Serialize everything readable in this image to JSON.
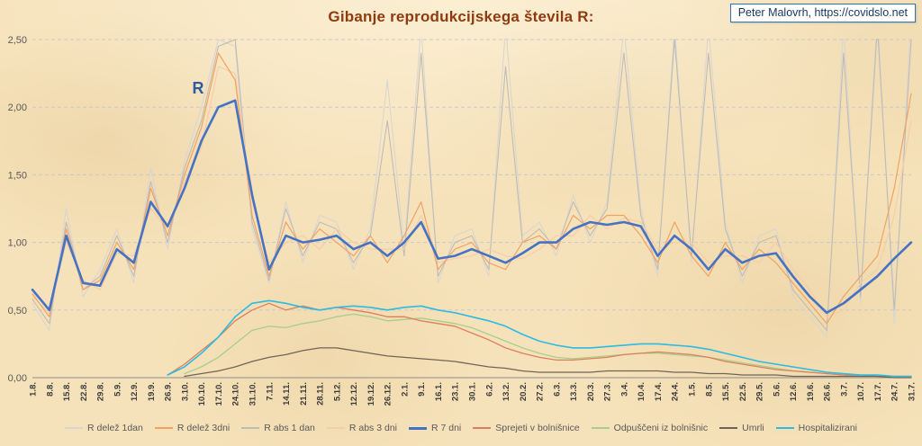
{
  "credit": {
    "text": "Peter Malovrh, https://covidslo.net"
  },
  "colors": {
    "background": "#f6e2ba",
    "title": "#8e3b10",
    "credit_border": "#2e75b6",
    "credit_text": "#17375e",
    "grid": "#c9c9c9",
    "axis_line": "#8c8c8c",
    "axis_text": "#595959",
    "tick_text": "#3a3a3a",
    "legend_text": "#595959",
    "accent_blue": "#4472c4"
  },
  "chart_data": {
    "type": "line",
    "title": "Gibanje reprodukcijskega števila R:",
    "xlabel": "",
    "ylabel": "",
    "ylim": [
      0,
      2.5
    ],
    "grid": "horizontal-dashed",
    "legend_position": "bottom",
    "y_ticks": [
      {
        "value": 0,
        "label": "0,00"
      },
      {
        "value": 0.5,
        "label": "0,50"
      },
      {
        "value": 1,
        "label": "1,00"
      },
      {
        "value": 1.5,
        "label": "1,50"
      },
      {
        "value": 2,
        "label": "2,00"
      },
      {
        "value": 2.5,
        "label": "2,50"
      }
    ],
    "x_tick_labels": [
      "1.8.",
      "8.8.",
      "15.8.",
      "22.8.",
      "29.8.",
      "5.9.",
      "12.9.",
      "19.9.",
      "26.9.",
      "3.10.",
      "10.10.",
      "17.10.",
      "24.10.",
      "31.10.",
      "7.11.",
      "14.11.",
      "21.11.",
      "28.11.",
      "5.12.",
      "12.12.",
      "19.12.",
      "26.12.",
      "2.1.",
      "9.1.",
      "16.1.",
      "23.1.",
      "30.1.",
      "6.2.",
      "13.2.",
      "20.2.",
      "27.2.",
      "6.3.",
      "13.3.",
      "20.3.",
      "27.3.",
      "3.4.",
      "10.4.",
      "17.4.",
      "24.4.",
      "1.5.",
      "8.5.",
      "15.5.",
      "22.5.",
      "29.5.",
      "5.6.",
      "12.6.",
      "19.6.",
      "26.6.",
      "3.7.",
      "10.7.",
      "17.7.",
      "24.7.",
      "31.7."
    ],
    "annotation": {
      "text": "R",
      "x_index": 9.8,
      "y_value": 2.1,
      "color": "#2e5b9f"
    },
    "draw_order": [
      0,
      2,
      3,
      1,
      6,
      5,
      7,
      8,
      4
    ],
    "series": [
      {
        "name": "R delež 1dan",
        "color": "#d9d6d0",
        "width": 1.1,
        "values": [
          0.55,
          0.35,
          1.25,
          0.6,
          0.8,
          1.1,
          0.7,
          1.55,
          0.95,
          1.6,
          2.0,
          2.5,
          2.45,
          1.1,
          0.7,
          1.3,
          0.85,
          1.2,
          1.15,
          0.8,
          1.1,
          2.2,
          0.95,
          2.6,
          0.7,
          1.05,
          1.1,
          0.75,
          2.6,
          1.05,
          1.15,
          0.9,
          1.35,
          1.0,
          1.3,
          2.6,
          1.25,
          0.75,
          2.6,
          0.85,
          2.6,
          1.15,
          0.7,
          1.05,
          1.1,
          0.6,
          0.45,
          0.3,
          2.6,
          0.55,
          2.7,
          0.4,
          2.7
        ]
      },
      {
        "name": "R delež 3dni",
        "color": "#f1a263",
        "width": 1.2,
        "values": [
          0.62,
          0.45,
          1.1,
          0.65,
          0.72,
          1.0,
          0.8,
          1.4,
          1.05,
          1.5,
          1.85,
          2.4,
          2.2,
          1.2,
          0.75,
          1.15,
          0.95,
          1.1,
          1.0,
          0.9,
          1.05,
          0.85,
          1.05,
          1.3,
          0.8,
          0.95,
          1.0,
          0.85,
          0.8,
          1.0,
          1.05,
          0.95,
          1.2,
          1.1,
          1.2,
          1.2,
          1.05,
          0.85,
          1.15,
          0.9,
          0.75,
          1.0,
          0.8,
          0.95,
          0.85,
          0.7,
          0.55,
          0.4,
          0.6,
          0.75,
          0.9,
          1.4,
          2.1
        ]
      },
      {
        "name": "R abs 1 dan",
        "color": "#bfbcb6",
        "width": 1.1,
        "values": [
          0.58,
          0.4,
          1.15,
          0.65,
          0.75,
          1.05,
          0.75,
          1.45,
          1.0,
          1.55,
          1.9,
          2.45,
          2.5,
          1.15,
          0.72,
          1.25,
          0.9,
          1.15,
          1.1,
          0.85,
          1.05,
          1.9,
          0.9,
          2.4,
          0.75,
          1.0,
          1.05,
          0.8,
          2.3,
          1.0,
          1.1,
          0.95,
          1.3,
          1.05,
          1.25,
          2.4,
          1.2,
          0.8,
          2.5,
          0.9,
          2.4,
          1.1,
          0.75,
          1.0,
          1.05,
          0.65,
          0.5,
          0.35,
          2.4,
          0.6,
          2.6,
          0.5,
          2.5
        ]
      },
      {
        "name": "R abs 3 dni",
        "color": "#f6cda6",
        "width": 1.2,
        "values": [
          0.6,
          0.48,
          1.0,
          0.72,
          0.65,
          0.92,
          0.9,
          1.25,
          1.1,
          1.45,
          1.7,
          2.3,
          2.25,
          1.3,
          0.85,
          1.0,
          1.05,
          0.95,
          1.1,
          1.0,
          0.95,
          0.95,
          0.95,
          1.2,
          0.85,
          0.88,
          0.9,
          0.95,
          0.9,
          0.88,
          0.95,
          1.05,
          1.05,
          1.2,
          1.1,
          1.18,
          1.15,
          0.95,
          1.0,
          1.0,
          0.85,
          0.9,
          0.9,
          0.85,
          1.0,
          0.8,
          0.65,
          0.45,
          0.5,
          0.7,
          0.8,
          1.2,
          1.9
        ]
      },
      {
        "name": "R 7 dni",
        "color": "#4472c4",
        "width": 2.6,
        "values": [
          0.65,
          0.5,
          1.05,
          0.7,
          0.68,
          0.95,
          0.85,
          1.3,
          1.12,
          1.4,
          1.75,
          2.0,
          2.05,
          1.35,
          0.8,
          1.05,
          1.0,
          1.02,
          1.05,
          0.95,
          1.0,
          0.9,
          1.0,
          1.15,
          0.88,
          0.9,
          0.95,
          0.9,
          0.85,
          0.92,
          1.0,
          1.0,
          1.1,
          1.15,
          1.13,
          1.15,
          1.12,
          0.9,
          1.05,
          0.95,
          0.8,
          0.95,
          0.85,
          0.9,
          0.92,
          0.75,
          0.6,
          0.48,
          0.55,
          0.65,
          0.75,
          0.88,
          1.0
        ]
      },
      {
        "name": "Sprejeti v bolnišnice",
        "color": "#dd7e5b",
        "width": 1.3,
        "values": [
          null,
          null,
          null,
          null,
          null,
          null,
          null,
          null,
          0.02,
          0.1,
          0.2,
          0.3,
          0.42,
          0.5,
          0.55,
          0.5,
          0.53,
          0.5,
          0.52,
          0.5,
          0.48,
          0.45,
          0.45,
          0.42,
          0.4,
          0.38,
          0.33,
          0.28,
          0.22,
          0.18,
          0.15,
          0.13,
          0.13,
          0.14,
          0.15,
          0.17,
          0.18,
          0.19,
          0.18,
          0.17,
          0.15,
          0.12,
          0.1,
          0.08,
          0.06,
          0.05,
          0.04,
          0.03,
          0.02,
          0.02,
          0.01,
          0.01,
          0.01
        ]
      },
      {
        "name": "Odpuščeni iz bolnišnic",
        "color": "#a6cf8c",
        "width": 1.3,
        "values": [
          null,
          null,
          null,
          null,
          null,
          null,
          null,
          null,
          null,
          0.03,
          0.08,
          0.15,
          0.25,
          0.35,
          0.38,
          0.37,
          0.4,
          0.42,
          0.45,
          0.47,
          0.45,
          0.42,
          0.43,
          0.44,
          0.42,
          0.4,
          0.37,
          0.32,
          0.27,
          0.22,
          0.18,
          0.15,
          0.14,
          0.15,
          0.16,
          0.17,
          0.18,
          0.18,
          0.17,
          0.16,
          0.15,
          0.13,
          0.11,
          0.09,
          0.07,
          0.05,
          0.04,
          0.03,
          0.02,
          0.01,
          0.01,
          0.01,
          0.0
        ]
      },
      {
        "name": "Umrli",
        "color": "#6f6457",
        "width": 1.3,
        "values": [
          null,
          null,
          null,
          null,
          null,
          null,
          null,
          null,
          null,
          0.01,
          0.03,
          0.05,
          0.08,
          0.12,
          0.15,
          0.17,
          0.2,
          0.22,
          0.22,
          0.2,
          0.18,
          0.16,
          0.15,
          0.14,
          0.13,
          0.12,
          0.1,
          0.08,
          0.07,
          0.05,
          0.04,
          0.04,
          0.04,
          0.04,
          0.05,
          0.05,
          0.05,
          0.05,
          0.04,
          0.04,
          0.03,
          0.03,
          0.02,
          0.02,
          0.02,
          0.01,
          0.01,
          0.01,
          0.01,
          0.01,
          0.01,
          0.0,
          0.0
        ]
      },
      {
        "name": "Hospitalizirani",
        "color": "#2bbbe3",
        "width": 1.6,
        "values": [
          null,
          null,
          null,
          null,
          null,
          null,
          null,
          null,
          0.02,
          0.08,
          0.18,
          0.3,
          0.45,
          0.55,
          0.57,
          0.55,
          0.52,
          0.5,
          0.52,
          0.53,
          0.52,
          0.5,
          0.52,
          0.53,
          0.5,
          0.48,
          0.45,
          0.42,
          0.38,
          0.32,
          0.27,
          0.24,
          0.22,
          0.22,
          0.23,
          0.24,
          0.25,
          0.25,
          0.24,
          0.23,
          0.21,
          0.18,
          0.15,
          0.12,
          0.1,
          0.08,
          0.06,
          0.04,
          0.03,
          0.02,
          0.02,
          0.01,
          0.01
        ]
      }
    ]
  }
}
